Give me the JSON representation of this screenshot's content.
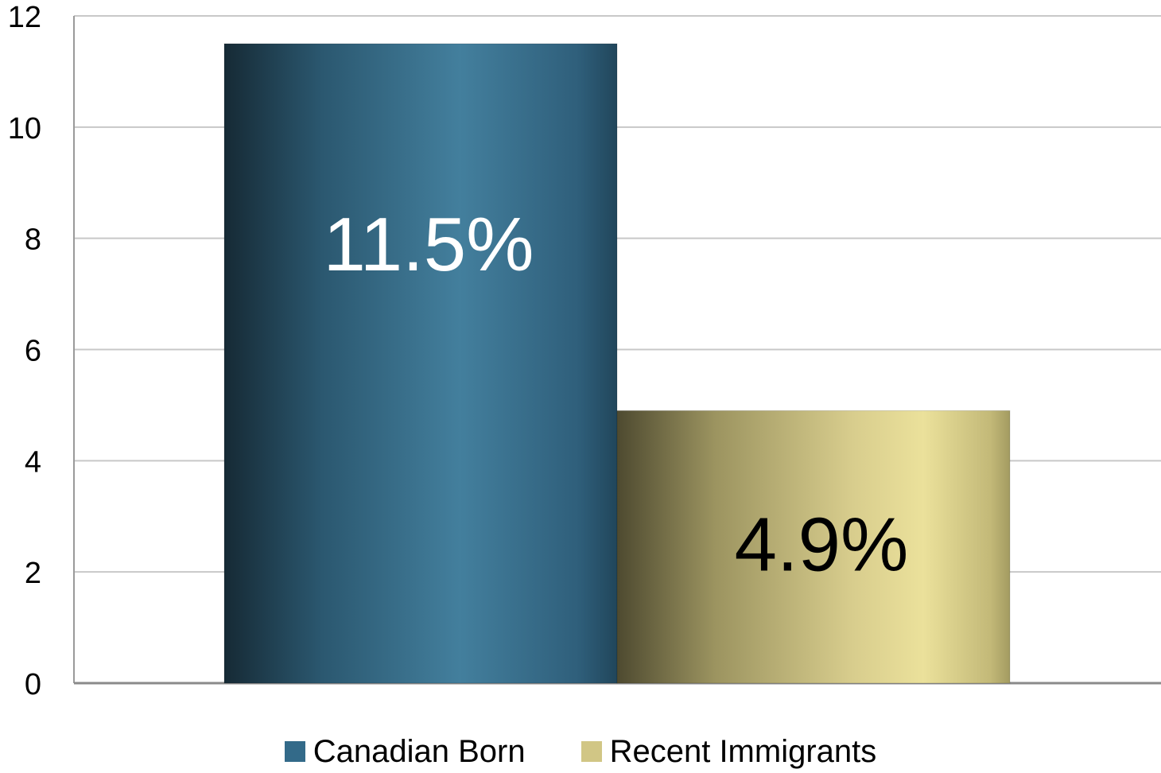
{
  "chart_data": {
    "type": "bar",
    "categories": [
      ""
    ],
    "series": [
      {
        "name": "Canadian Born",
        "values": [
          11.5
        ],
        "label": "11.5%",
        "color": "#336a89",
        "label_color": "#ffffff"
      },
      {
        "name": "Recent Immigrants",
        "values": [
          4.9
        ],
        "label": "4.9%",
        "color": "#d1c685",
        "label_color": "#000000"
      }
    ],
    "title": "",
    "xlabel": "",
    "ylabel": "",
    "ylim": [
      0,
      12
    ],
    "yticks": [
      "0",
      "2",
      "4",
      "6",
      "8",
      "10",
      "12"
    ],
    "grid": true,
    "legend_position": "bottom"
  }
}
